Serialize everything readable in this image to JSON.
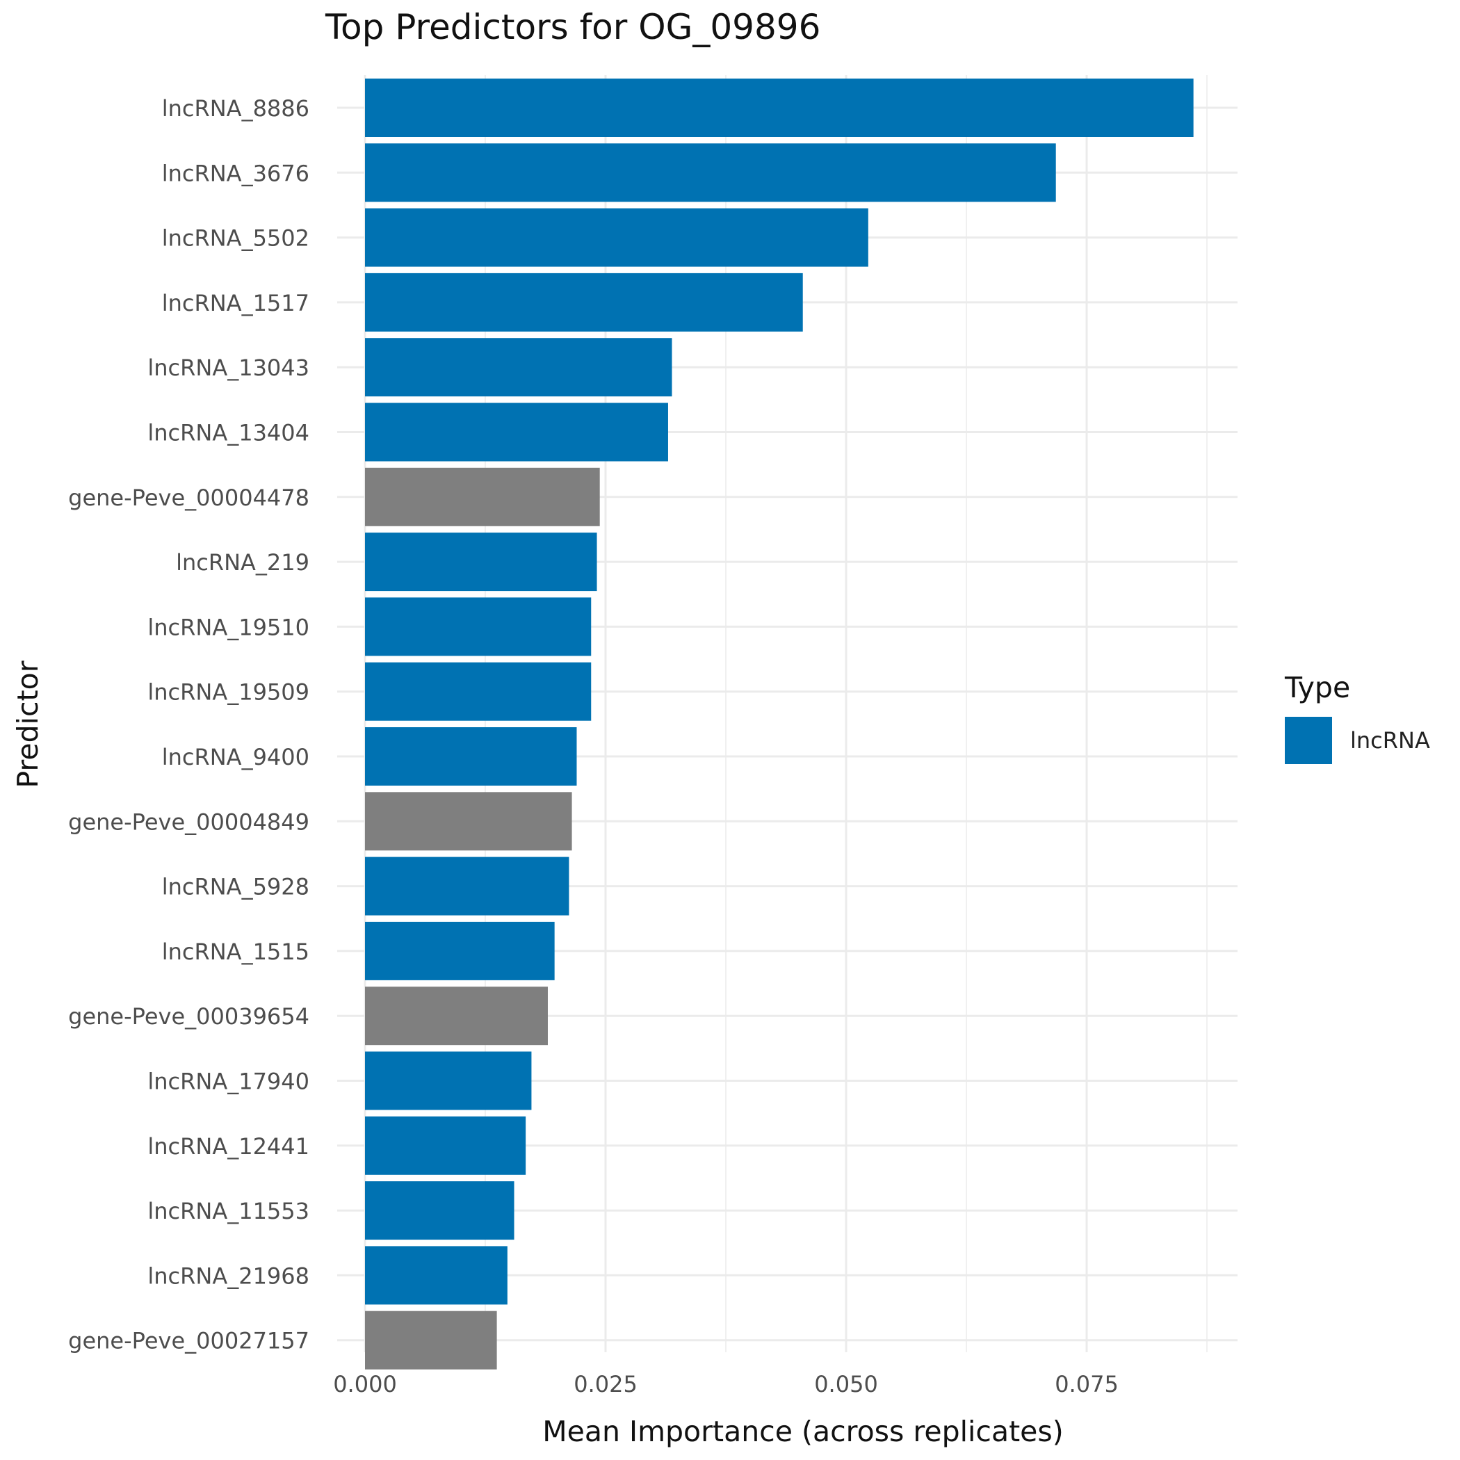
{
  "chart_data": {
    "type": "bar",
    "orientation": "horizontal",
    "title": "Top Predictors for OG_09896",
    "xlabel": "Mean Importance (across replicates)",
    "ylabel": "Predictor",
    "xlim": [
      0,
      0.0905
    ],
    "x_ticks": [
      "0.000",
      "0.025",
      "0.050",
      "0.075"
    ],
    "x_tick_values": [
      0,
      0.025,
      0.05,
      0.075
    ],
    "grid": true,
    "legend_position": "right",
    "legend": {
      "title": "Type",
      "entries": [
        {
          "label": "lncRNA",
          "color": "#0072B2"
        }
      ]
    },
    "colors": {
      "lncRNA": "#0072B2",
      "gene": "#7F7F7F"
    },
    "categories": [
      "lncRNA_8886",
      "lncRNA_3676",
      "lncRNA_5502",
      "lncRNA_1517",
      "lncRNA_13043",
      "lncRNA_13404",
      "gene-Peve_00004478",
      "lncRNA_219",
      "lncRNA_19510",
      "lncRNA_19509",
      "lncRNA_9400",
      "gene-Peve_00004849",
      "lncRNA_5928",
      "lncRNA_1515",
      "gene-Peve_00039654",
      "lncRNA_17940",
      "lncRNA_12441",
      "lncRNA_11553",
      "lncRNA_21968",
      "gene-Peve_00027157"
    ],
    "values": [
      0.0861,
      0.0718,
      0.0523,
      0.0455,
      0.0319,
      0.0315,
      0.0244,
      0.0241,
      0.0235,
      0.0235,
      0.022,
      0.0215,
      0.0212,
      0.0197,
      0.019,
      0.0173,
      0.0167,
      0.0155,
      0.0148,
      0.0137
    ],
    "types": [
      "lncRNA",
      "lncRNA",
      "lncRNA",
      "lncRNA",
      "lncRNA",
      "lncRNA",
      "gene",
      "lncRNA",
      "lncRNA",
      "lncRNA",
      "lncRNA",
      "gene",
      "lncRNA",
      "lncRNA",
      "gene",
      "lncRNA",
      "lncRNA",
      "lncRNA",
      "lncRNA",
      "gene"
    ]
  }
}
